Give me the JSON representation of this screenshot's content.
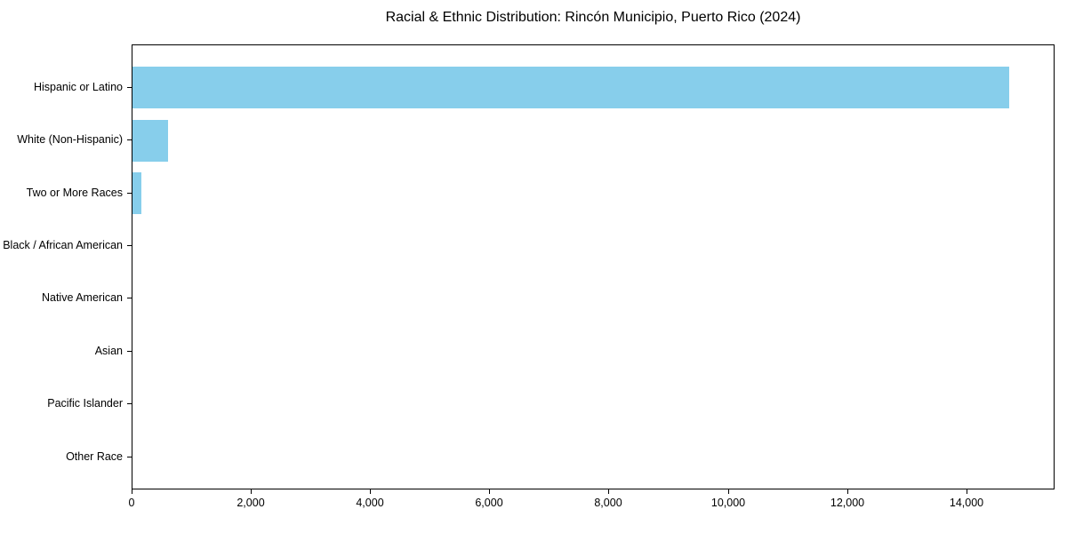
{
  "chart_data": {
    "type": "bar",
    "orientation": "horizontal",
    "title": "Racial & Ethnic Distribution: Rincón Municipio, Puerto Rico (2024)",
    "categories": [
      "Hispanic or Latino",
      "White (Non-Hispanic)",
      "Two or More Races",
      "Black / African American",
      "Native American",
      "Asian",
      "Pacific Islander",
      "Other Race"
    ],
    "values": [
      14700,
      600,
      150,
      0,
      0,
      0,
      0,
      0
    ],
    "xlabel": "",
    "ylabel": "",
    "xlim": [
      0,
      15480
    ],
    "x_ticks": [
      0,
      2000,
      4000,
      6000,
      8000,
      10000,
      12000,
      14000
    ],
    "x_tick_labels": [
      "0",
      "2,000",
      "4,000",
      "6,000",
      "8,000",
      "10,000",
      "12,000",
      "14,000"
    ],
    "bar_color": "#87CEEB",
    "axis_color": "#000000",
    "grid": false,
    "legend_position": "none"
  }
}
